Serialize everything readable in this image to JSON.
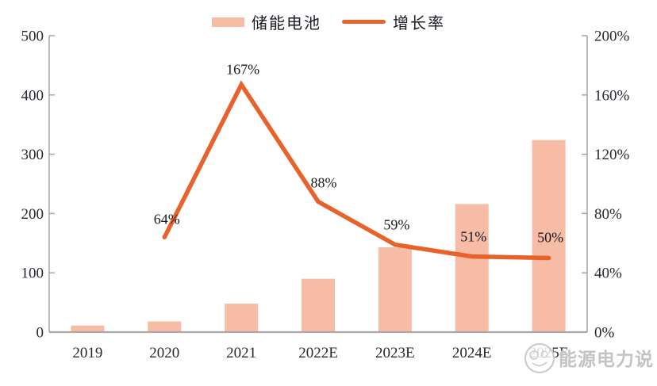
{
  "legend": {
    "items": [
      {
        "label": "储能电池",
        "type": "bar",
        "color": "#F7BCA6"
      },
      {
        "label": "增长率",
        "type": "line",
        "color": "#E8622B"
      }
    ]
  },
  "chart_data": {
    "type": "bar+line combo",
    "categories": [
      "2019",
      "2020",
      "2021",
      "2022E",
      "2023E",
      "2024E",
      "2025E"
    ],
    "series": [
      {
        "name": "储能电池",
        "type": "bar",
        "axis": "left",
        "color": "#F7BCA6",
        "values": [
          11,
          18,
          48,
          90,
          143,
          216,
          324
        ]
      },
      {
        "name": "增长率",
        "type": "line",
        "axis": "right",
        "color": "#E8622B",
        "values": [
          null,
          64,
          167,
          88,
          59,
          51,
          50
        ],
        "labels": [
          "",
          "64%",
          "167%",
          "88%",
          "59%",
          "51%",
          "50%"
        ]
      }
    ],
    "left_axis": {
      "min": 0,
      "max": 500,
      "step": 100,
      "ticks": [
        "0",
        "100",
        "200",
        "300",
        "400",
        "500"
      ]
    },
    "right_axis": {
      "min": 0,
      "max": 200,
      "step": 40,
      "ticks": [
        "0%",
        "40%",
        "80%",
        "120%",
        "160%",
        "200%"
      ]
    },
    "grid": false,
    "legend_position": "top",
    "title": ""
  },
  "watermark": {
    "text": "能源电力说"
  },
  "colors": {
    "bar": "#F7BCA6",
    "line": "#E8622B",
    "axis": "#A9A9A9",
    "text": "#26282f",
    "watermark": "#c3c3c3"
  }
}
